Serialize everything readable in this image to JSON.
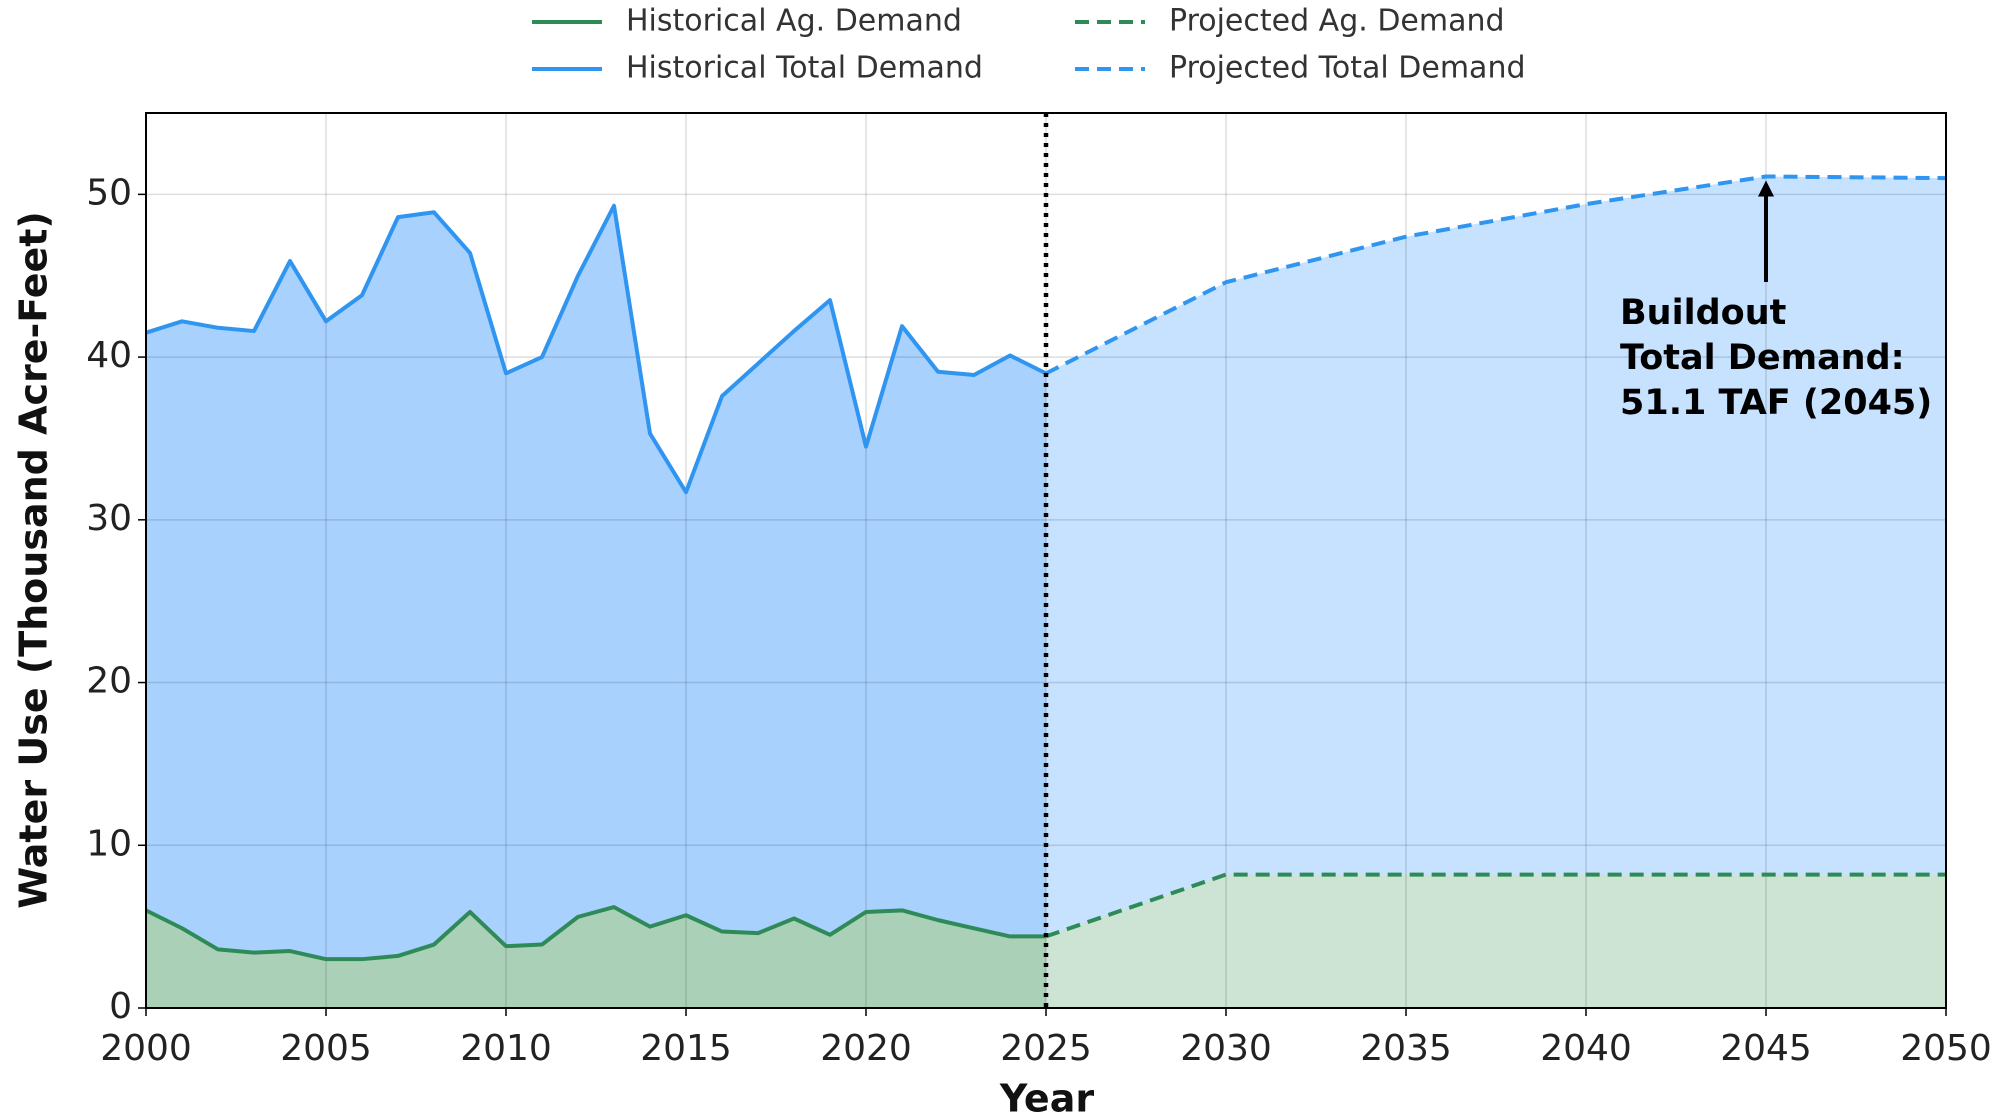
{
  "chart_data": {
    "type": "area-line",
    "x_label": "Year",
    "y_label": "Water Use (Thousand Acre-Feet)",
    "xlim": [
      2000,
      2050
    ],
    "xticks": [
      2000,
      2005,
      2010,
      2015,
      2020,
      2025,
      2030,
      2035,
      2040,
      2045,
      2050
    ],
    "ylim": [
      0,
      55
    ],
    "yticks": [
      0,
      10,
      20,
      30,
      40,
      50
    ],
    "grid": true,
    "legend": "top",
    "divider_x": 2025,
    "series": [
      {
        "name": "Historical Ag. Demand",
        "color": "#2e8b57",
        "fill": "#abd0b8",
        "linestyle": "solid",
        "x": [
          2000,
          2001,
          2002,
          2003,
          2004,
          2005,
          2006,
          2007,
          2008,
          2009,
          2010,
          2011,
          2012,
          2013,
          2014,
          2015,
          2016,
          2017,
          2018,
          2019,
          2020,
          2021,
          2022,
          2023,
          2024,
          2025
        ],
        "values": [
          6.0,
          4.9,
          3.6,
          3.4,
          3.5,
          3.0,
          3.0,
          3.2,
          3.9,
          5.9,
          3.8,
          3.9,
          5.6,
          6.2,
          5.0,
          5.7,
          4.7,
          4.6,
          5.5,
          4.5,
          5.9,
          6.0,
          5.4,
          4.9,
          4.4,
          4.4
        ]
      },
      {
        "name": "Historical Total Demand",
        "color": "#2f95f0",
        "fill": "#a8d1fe",
        "linestyle": "solid",
        "x": [
          2000,
          2001,
          2002,
          2003,
          2004,
          2005,
          2006,
          2007,
          2008,
          2009,
          2010,
          2011,
          2012,
          2013,
          2014,
          2015,
          2016,
          2017,
          2018,
          2019,
          2020,
          2021,
          2022,
          2023,
          2024,
          2025
        ],
        "values": [
          41.5,
          42.2,
          41.8,
          41.6,
          45.9,
          42.2,
          43.8,
          48.6,
          48.9,
          46.4,
          39.0,
          40.0,
          45.0,
          49.3,
          35.3,
          31.7,
          37.6,
          39.6,
          41.6,
          43.5,
          34.5,
          41.9,
          39.1,
          38.9,
          40.1,
          39.0
        ]
      },
      {
        "name": "Projected Ag. Demand",
        "color": "#2e8b57",
        "fill": "#cde3d4",
        "linestyle": "dashed",
        "x": [
          2025,
          2030,
          2035,
          2040,
          2045,
          2050
        ],
        "values": [
          4.4,
          8.2,
          8.2,
          8.2,
          8.2,
          8.2
        ]
      },
      {
        "name": "Projected Total Demand",
        "color": "#2f95f0",
        "fill": "#c6e2fe",
        "linestyle": "dashed",
        "x": [
          2025,
          2030,
          2035,
          2040,
          2045,
          2050
        ],
        "values": [
          39.0,
          44.6,
          47.4,
          49.4,
          51.1,
          51.0
        ]
      }
    ],
    "annotation": {
      "lines": [
        "Buildout",
        "Total Demand:",
        "51.1 TAF (2045)"
      ],
      "x": 2045,
      "y": 51.1
    }
  }
}
